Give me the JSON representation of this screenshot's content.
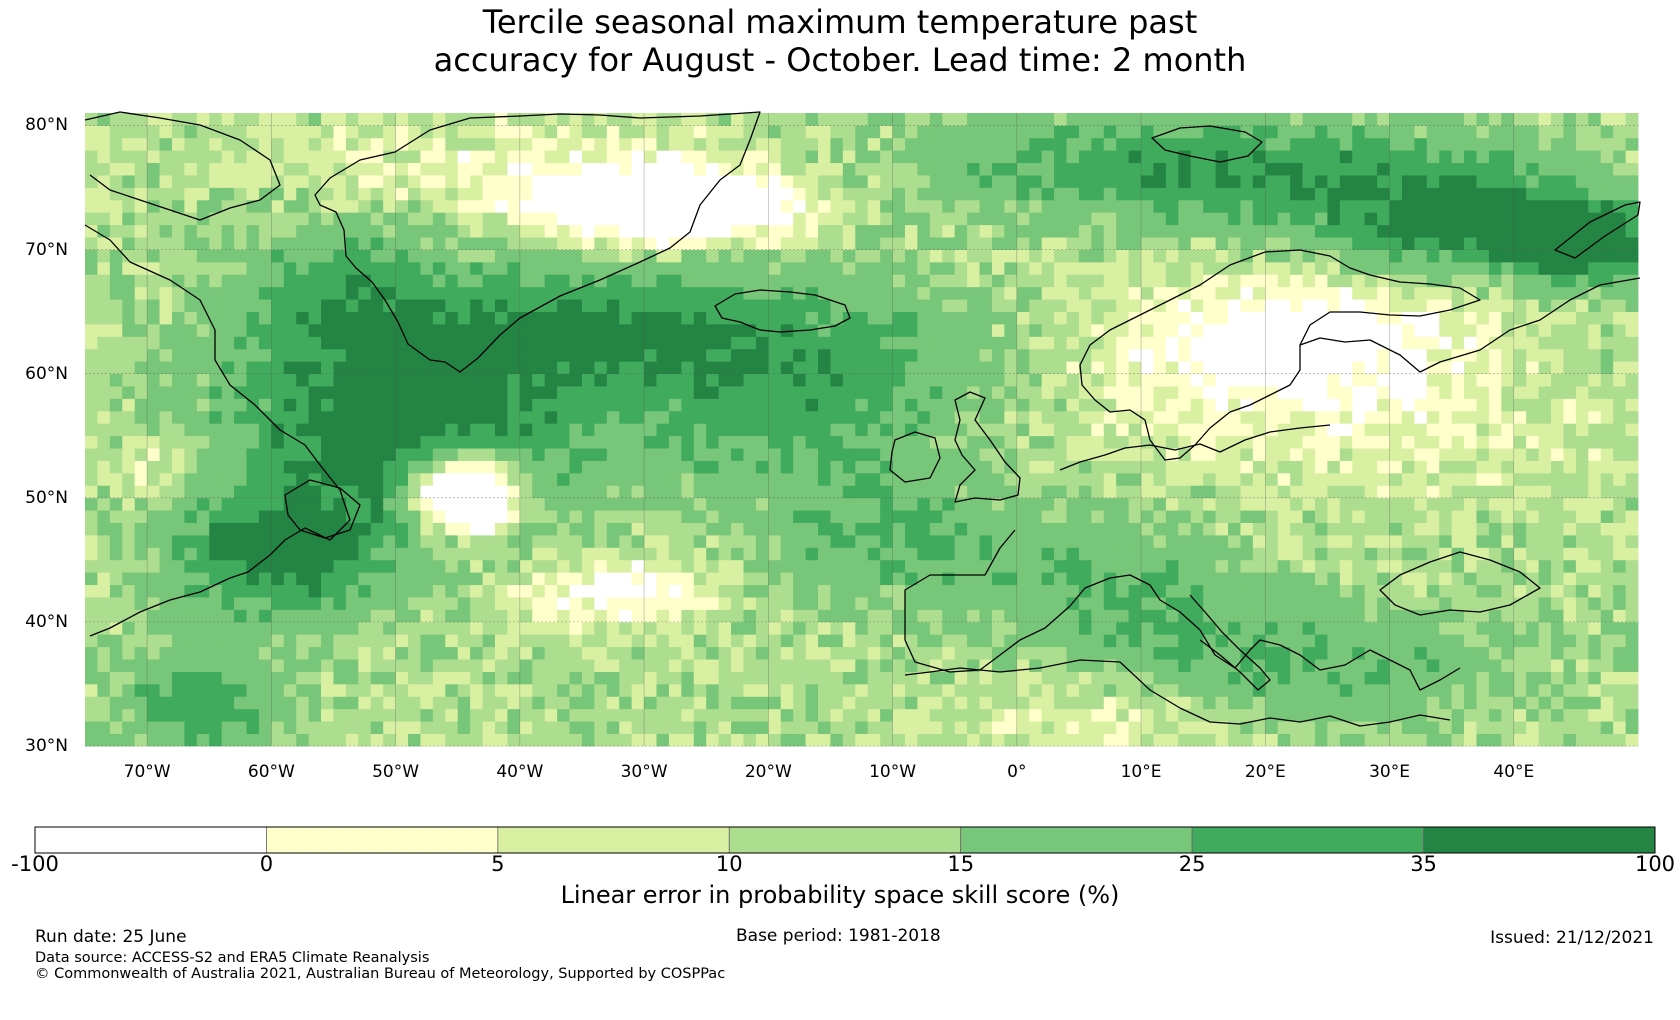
{
  "title": {
    "line1": "Tercile seasonal maximum temperature past",
    "line2": "accuracy for August - October. Lead time: 2 month"
  },
  "map": {
    "lat_labels": [
      "80°N",
      "70°N",
      "60°N",
      "50°N",
      "40°N",
      "30°N"
    ],
    "lon_labels": [
      "70°W",
      "60°W",
      "50°W",
      "40°W",
      "30°W",
      "20°W",
      "10°W",
      "0°",
      "10°E",
      "20°E",
      "30°E",
      "40°E"
    ],
    "lat_range": [
      30,
      81
    ],
    "lon_range": [
      -75,
      50
    ],
    "coastline_color": "#000000",
    "gridlines": true
  },
  "colorbar": {
    "tick_labels": [
      "-100",
      "0",
      "5",
      "10",
      "15",
      "25",
      "35",
      "100"
    ],
    "bins": [
      {
        "from": -100,
        "to": 0,
        "color": "#ffffff"
      },
      {
        "from": 0,
        "to": 5,
        "color": "#ffffcc"
      },
      {
        "from": 5,
        "to": 10,
        "color": "#d9f0a3"
      },
      {
        "from": 10,
        "to": 15,
        "color": "#addd8e"
      },
      {
        "from": 15,
        "to": 25,
        "color": "#78c679"
      },
      {
        "from": 25,
        "to": 35,
        "color": "#41ab5d"
      },
      {
        "from": 35,
        "to": 100,
        "color": "#238443"
      }
    ],
    "label": "Linear error in probability space skill score (%)"
  },
  "footer": {
    "run_date": "Run date: 25 June",
    "base_period": "Base period: 1981-2018",
    "issued": "Issued: 21/12/2021",
    "data_source": "Data source: ACCESS-S2 and ERA5 Climate Reanalysis",
    "copyright": "© Commonwealth of Australia 2021, Australian Bureau of Meteorology, Supported by COSPPac"
  }
}
